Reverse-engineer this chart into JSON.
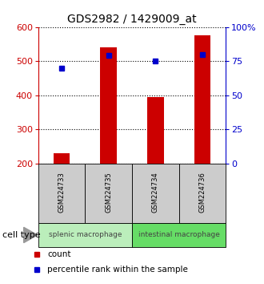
{
  "title": "GDS2982 / 1429009_at",
  "samples": [
    "GSM224733",
    "GSM224735",
    "GSM224734",
    "GSM224736"
  ],
  "counts": [
    230,
    540,
    395,
    575
  ],
  "percentiles": [
    70,
    79,
    75,
    80
  ],
  "ylim_left": [
    200,
    600
  ],
  "ylim_right": [
    0,
    100
  ],
  "yticks_left": [
    200,
    300,
    400,
    500,
    600
  ],
  "yticks_right": [
    0,
    25,
    50,
    75,
    100
  ],
  "ytick_labels_right": [
    "0",
    "25",
    "50",
    "75",
    "100%"
  ],
  "bar_color": "#cc0000",
  "dot_color": "#0000cc",
  "grid_color": "#000000",
  "groups": [
    {
      "label": "splenic macrophage",
      "indices": [
        0,
        1
      ],
      "color": "#bbeebb"
    },
    {
      "label": "intestinal macrophage",
      "indices": [
        2,
        3
      ],
      "color": "#66dd66"
    }
  ],
  "sample_box_color": "#cccccc",
  "cell_type_label": "cell type",
  "legend_count_label": "count",
  "legend_percentile_label": "percentile rank within the sample",
  "title_fontsize": 10,
  "tick_fontsize": 8,
  "sample_fontsize": 6,
  "group_fontsize": 6.5,
  "legend_fontsize": 7.5
}
